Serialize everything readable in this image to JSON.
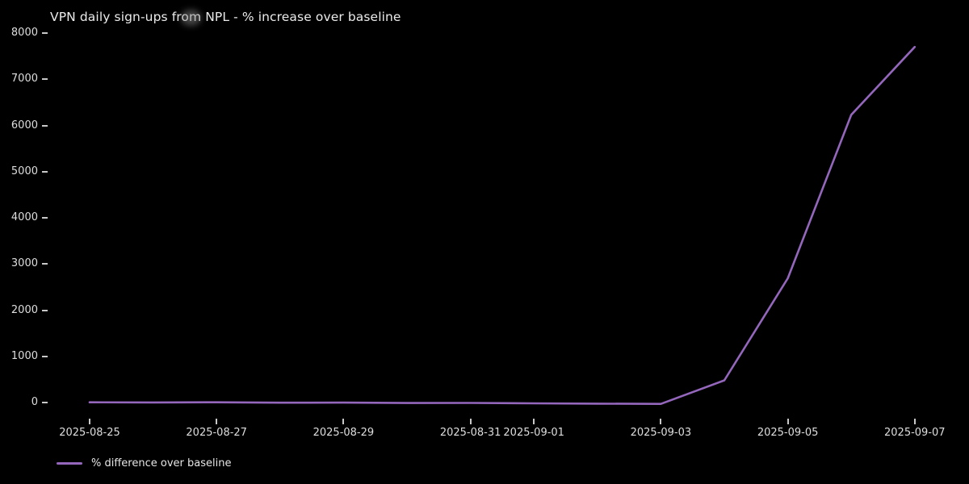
{
  "title": "VPN daily sign-ups from NPL - % increase over baseline",
  "legend": {
    "label": "% difference over baseline"
  },
  "colors": {
    "background": "#000000",
    "line": "#9467bd",
    "tick_text": "#dedede",
    "title_text": "#ebebeb"
  },
  "chart_data": {
    "type": "line",
    "title": "VPN daily sign-ups from NPL - % increase over baseline",
    "x": [
      "2025-08-25",
      "2025-08-26",
      "2025-08-27",
      "2025-08-28",
      "2025-08-29",
      "2025-08-30",
      "2025-08-31",
      "2025-09-01",
      "2025-09-02",
      "2025-09-03",
      "2025-09-04",
      "2025-09-05",
      "2025-09-06",
      "2025-09-07"
    ],
    "series": [
      {
        "name": "% difference over baseline",
        "color": "#9467bd",
        "values": [
          5,
          2,
          6,
          -4,
          -2,
          -10,
          -8,
          -18,
          -24,
          -30,
          480,
          2690,
          6230,
          7700
        ]
      }
    ],
    "x_tick_labels": [
      "2025-08-25",
      "2025-08-27",
      "2025-08-29",
      "2025-08-31",
      "2025-09-01",
      "2025-09-03",
      "2025-09-05",
      "2025-09-07"
    ],
    "y_ticks": [
      0,
      1000,
      2000,
      3000,
      4000,
      5000,
      6000,
      7000,
      8000
    ],
    "ylim": [
      -400,
      8100
    ],
    "xlabel": "",
    "ylabel": "",
    "grid": false,
    "legend_position": "lower-left-below-axes",
    "background_style": "dark"
  }
}
